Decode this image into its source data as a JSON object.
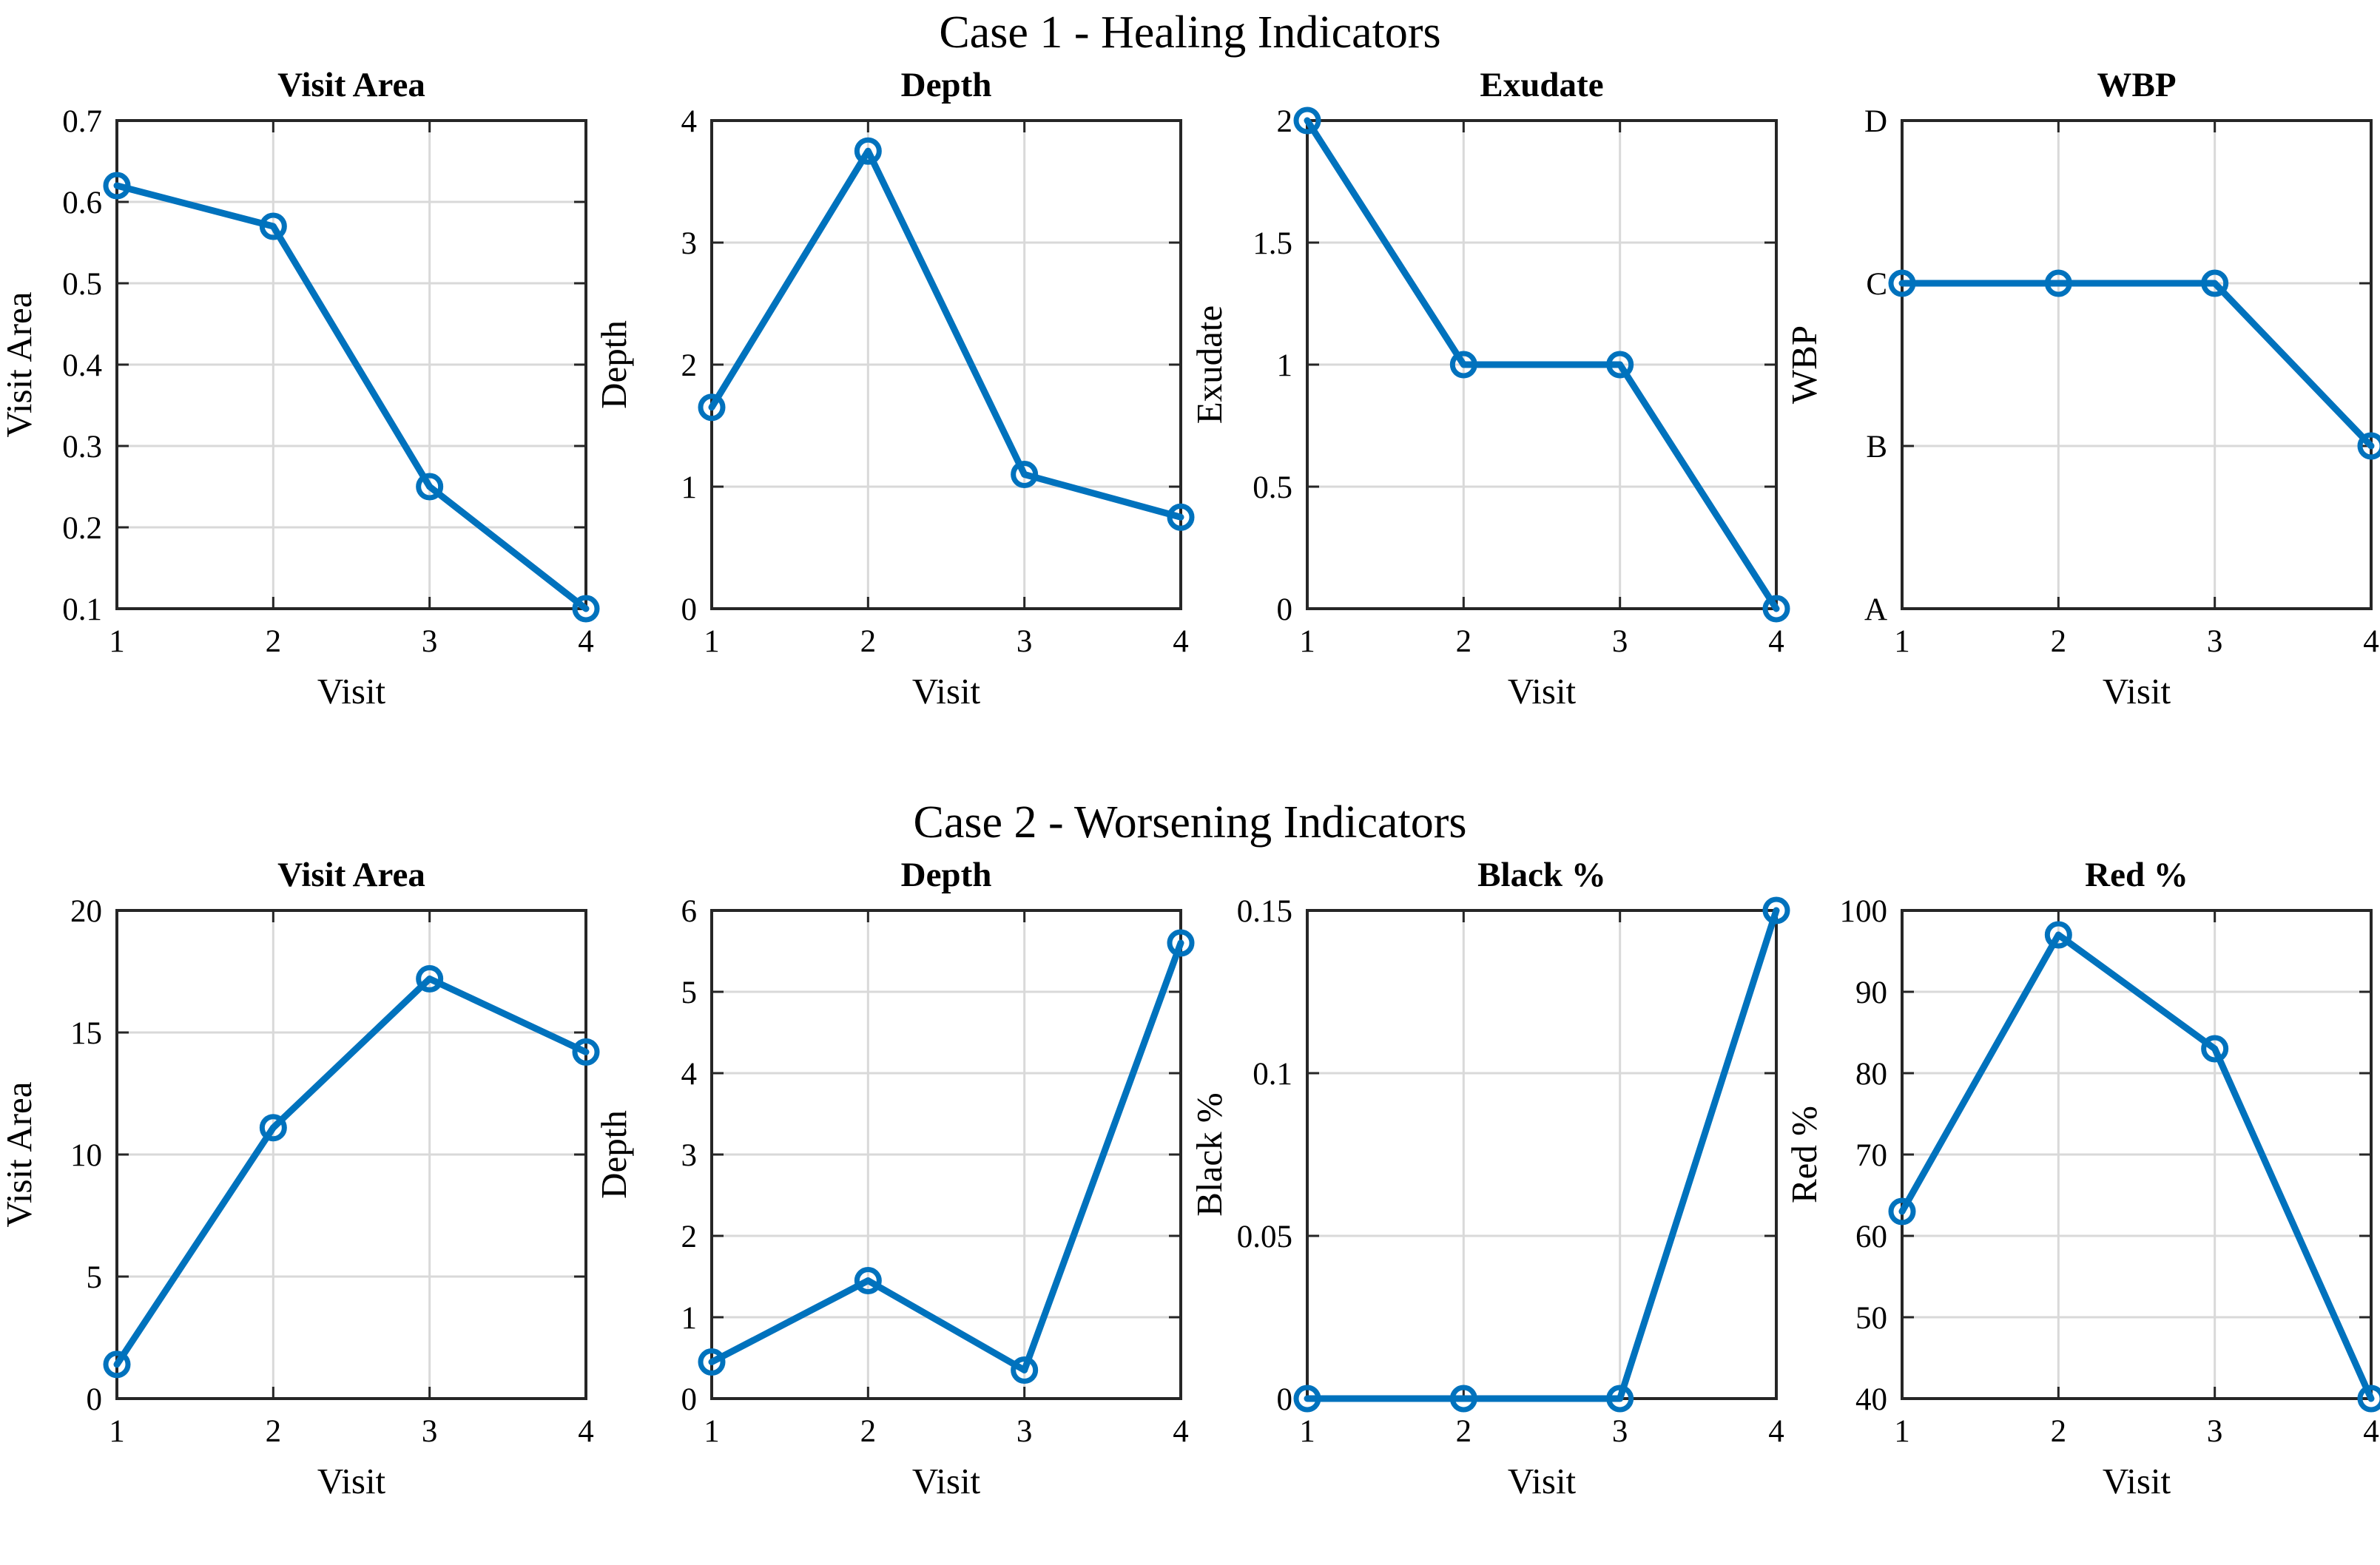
{
  "colors": {
    "line": "#0072BD",
    "grid": "#d9d9d9",
    "axis": "#262626",
    "text": "#000000",
    "background": "#ffffff"
  },
  "chart_sections": [
    {
      "title": "Case 1 - Healing Indicators",
      "chart_indexes": [
        0,
        1,
        2,
        3
      ]
    },
    {
      "title": "Case 2 - Worsening Indicators",
      "chart_indexes": [
        4,
        5,
        6,
        7
      ]
    }
  ],
  "chart_data": [
    {
      "type": "line",
      "section": "Case 1 - Healing Indicators",
      "title": "Visit Area",
      "xlabel": "Visit",
      "ylabel": "Visit Area",
      "x": [
        1,
        2,
        3,
        4
      ],
      "y": [
        0.62,
        0.57,
        0.25,
        0.1
      ],
      "xlim": [
        1,
        4
      ],
      "ylim": [
        0.1,
        0.7
      ],
      "xticks": [
        1,
        2,
        3,
        4
      ],
      "xtick_labels": [
        "1",
        "2",
        "3",
        "4"
      ],
      "yticks": [
        0.1,
        0.2,
        0.3,
        0.4,
        0.5,
        0.6,
        0.7
      ],
      "ytick_labels": [
        "0.1",
        "0.2",
        "0.3",
        "0.4",
        "0.5",
        "0.6",
        "0.7"
      ],
      "marker": "o",
      "line_color": "#0072BD",
      "grid": true
    },
    {
      "type": "line",
      "section": "Case 1 - Healing Indicators",
      "title": "Depth",
      "xlabel": "Visit",
      "ylabel": "Depth",
      "x": [
        1,
        2,
        3,
        4
      ],
      "y": [
        1.65,
        3.75,
        1.1,
        0.75
      ],
      "xlim": [
        1,
        4
      ],
      "ylim": [
        0,
        4
      ],
      "xticks": [
        1,
        2,
        3,
        4
      ],
      "xtick_labels": [
        "1",
        "2",
        "3",
        "4"
      ],
      "yticks": [
        0,
        1,
        2,
        3,
        4
      ],
      "ytick_labels": [
        "0",
        "1",
        "2",
        "3",
        "4"
      ],
      "marker": "o",
      "line_color": "#0072BD",
      "grid": true
    },
    {
      "type": "line",
      "section": "Case 1 - Healing Indicators",
      "title": "Exudate",
      "xlabel": "Visit",
      "ylabel": "Exudate",
      "x": [
        1,
        2,
        3,
        4
      ],
      "y": [
        2,
        1,
        1,
        0
      ],
      "xlim": [
        1,
        4
      ],
      "ylim": [
        0,
        2
      ],
      "xticks": [
        1,
        2,
        3,
        4
      ],
      "xtick_labels": [
        "1",
        "2",
        "3",
        "4"
      ],
      "yticks": [
        0,
        0.5,
        1,
        1.5,
        2
      ],
      "ytick_labels": [
        "0",
        "0.5",
        "1",
        "1.5",
        "2"
      ],
      "marker": "o",
      "line_color": "#0072BD",
      "grid": true
    },
    {
      "type": "line",
      "section": "Case 1 - Healing Indicators",
      "title": "WBP",
      "xlabel": "Visit",
      "ylabel": "WBP",
      "x": [
        1,
        2,
        3,
        4
      ],
      "y": [
        3,
        3,
        3,
        2
      ],
      "y_categories": [
        "C",
        "C",
        "C",
        "B"
      ],
      "xlim": [
        1,
        4
      ],
      "ylim": [
        1,
        4
      ],
      "xticks": [
        1,
        2,
        3,
        4
      ],
      "xtick_labels": [
        "1",
        "2",
        "3",
        "4"
      ],
      "yticks": [
        1,
        2,
        3,
        4
      ],
      "ytick_labels": [
        "A",
        "B",
        "C",
        "D"
      ],
      "marker": "o",
      "line_color": "#0072BD",
      "grid": true
    },
    {
      "type": "line",
      "section": "Case 2 - Worsening Indicators",
      "title": "Visit Area",
      "xlabel": "Visit",
      "ylabel": "Visit Area",
      "x": [
        1,
        2,
        3,
        4
      ],
      "y": [
        1.4,
        11.1,
        17.2,
        14.2
      ],
      "xlim": [
        1,
        4
      ],
      "ylim": [
        0,
        20
      ],
      "xticks": [
        1,
        2,
        3,
        4
      ],
      "xtick_labels": [
        "1",
        "2",
        "3",
        "4"
      ],
      "yticks": [
        0,
        5,
        10,
        15,
        20
      ],
      "ytick_labels": [
        "0",
        "5",
        "10",
        "15",
        "20"
      ],
      "marker": "o",
      "line_color": "#0072BD",
      "grid": true
    },
    {
      "type": "line",
      "section": "Case 2 - Worsening Indicators",
      "title": "Depth",
      "xlabel": "Visit",
      "ylabel": "Depth",
      "x": [
        1,
        2,
        3,
        4
      ],
      "y": [
        0.45,
        1.45,
        0.35,
        5.6
      ],
      "xlim": [
        1,
        4
      ],
      "ylim": [
        0,
        6
      ],
      "xticks": [
        1,
        2,
        3,
        4
      ],
      "xtick_labels": [
        "1",
        "2",
        "3",
        "4"
      ],
      "yticks": [
        0,
        1,
        2,
        3,
        4,
        5,
        6
      ],
      "ytick_labels": [
        "0",
        "1",
        "2",
        "3",
        "4",
        "5",
        "6"
      ],
      "marker": "o",
      "line_color": "#0072BD",
      "grid": true
    },
    {
      "type": "line",
      "section": "Case 2 - Worsening Indicators",
      "title": "Black %",
      "xlabel": "Visit",
      "ylabel": "Black %",
      "x": [
        1,
        2,
        3,
        4
      ],
      "y": [
        0,
        0,
        0,
        0.15
      ],
      "xlim": [
        1,
        4
      ],
      "ylim": [
        0,
        0.15
      ],
      "xticks": [
        1,
        2,
        3,
        4
      ],
      "xtick_labels": [
        "1",
        "2",
        "3",
        "4"
      ],
      "yticks": [
        0,
        0.05,
        0.1,
        0.15
      ],
      "ytick_labels": [
        "0",
        "0.05",
        "0.1",
        "0.15"
      ],
      "marker": "o",
      "line_color": "#0072BD",
      "grid": true
    },
    {
      "type": "line",
      "section": "Case 2 - Worsening Indicators",
      "title": "Red %",
      "xlabel": "Visit",
      "ylabel": "Red %",
      "x": [
        1,
        2,
        3,
        4
      ],
      "y": [
        63,
        97,
        83,
        40
      ],
      "xlim": [
        1,
        4
      ],
      "ylim": [
        40,
        100
      ],
      "xticks": [
        1,
        2,
        3,
        4
      ],
      "xtick_labels": [
        "1",
        "2",
        "3",
        "4"
      ],
      "yticks": [
        40,
        50,
        60,
        70,
        80,
        90,
        100
      ],
      "ytick_labels": [
        "40",
        "50",
        "60",
        "70",
        "80",
        "90",
        "100"
      ],
      "marker": "o",
      "line_color": "#0072BD",
      "grid": true
    }
  ]
}
